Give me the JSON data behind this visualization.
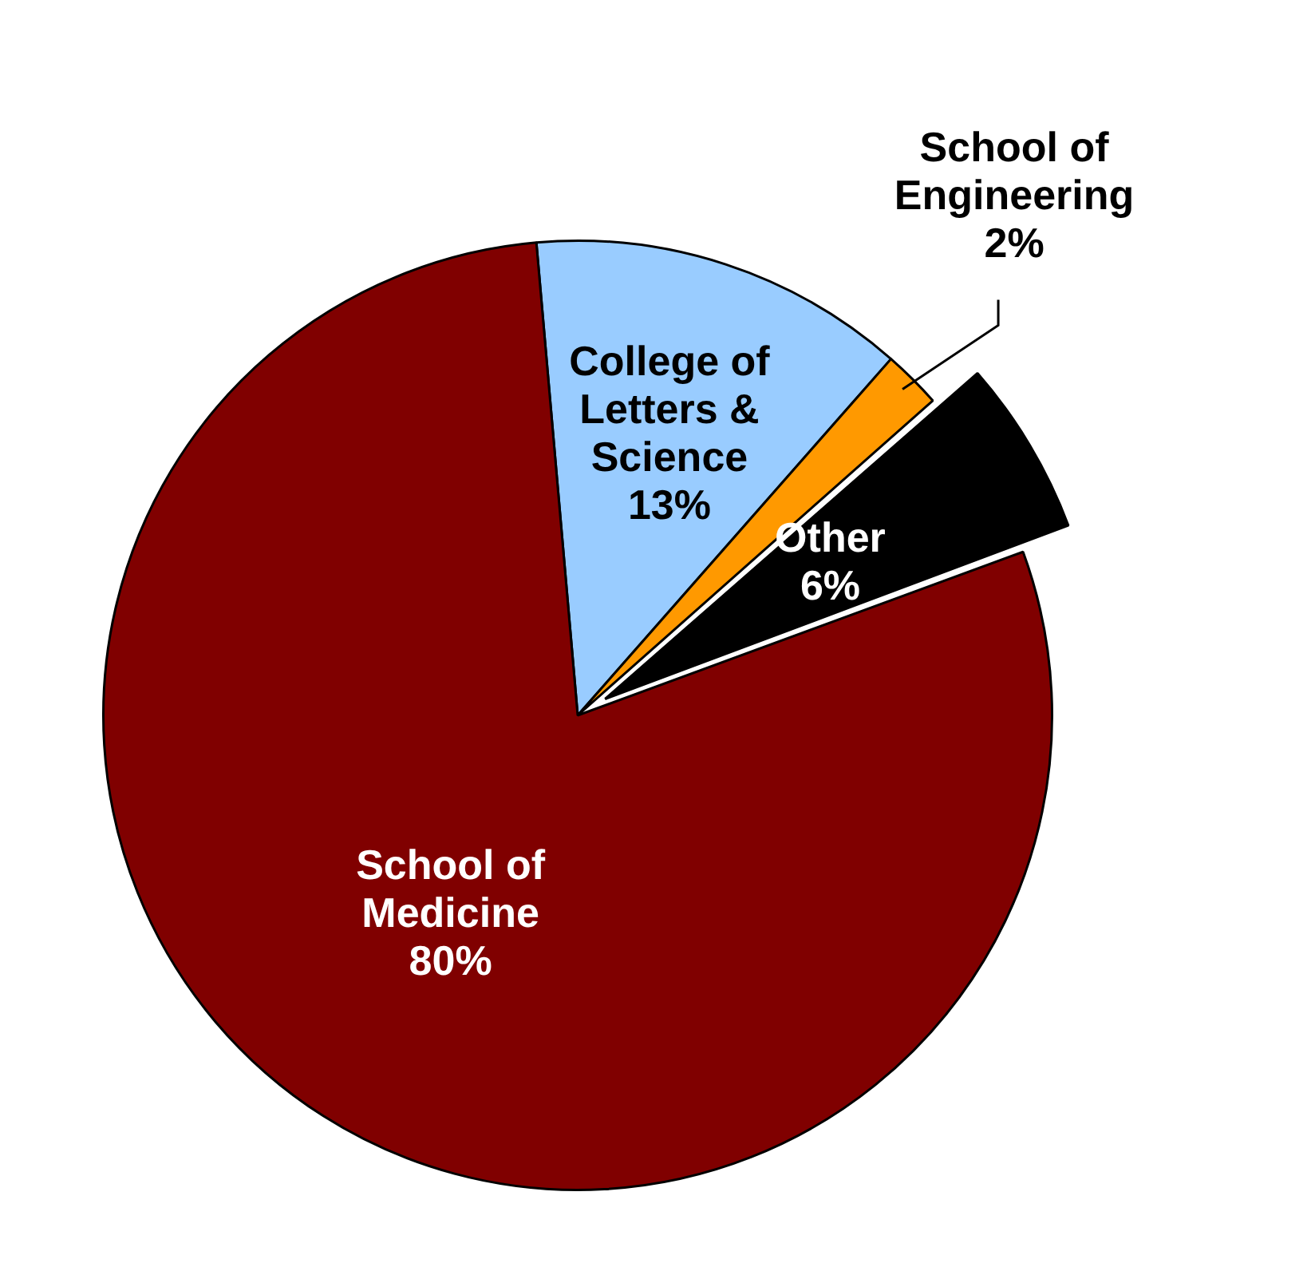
{
  "chart_data": {
    "type": "pie",
    "categories": [
      "College of Letters & Science",
      "School of Engineering",
      "Other",
      "School of Medicine"
    ],
    "values": [
      13,
      2,
      6,
      80
    ],
    "colors": [
      "#99ccff",
      "#ff9900",
      "#000000",
      "#800000"
    ],
    "value_labels": [
      "13%",
      "2%",
      "6%",
      "80%"
    ],
    "legend": false
  }
}
